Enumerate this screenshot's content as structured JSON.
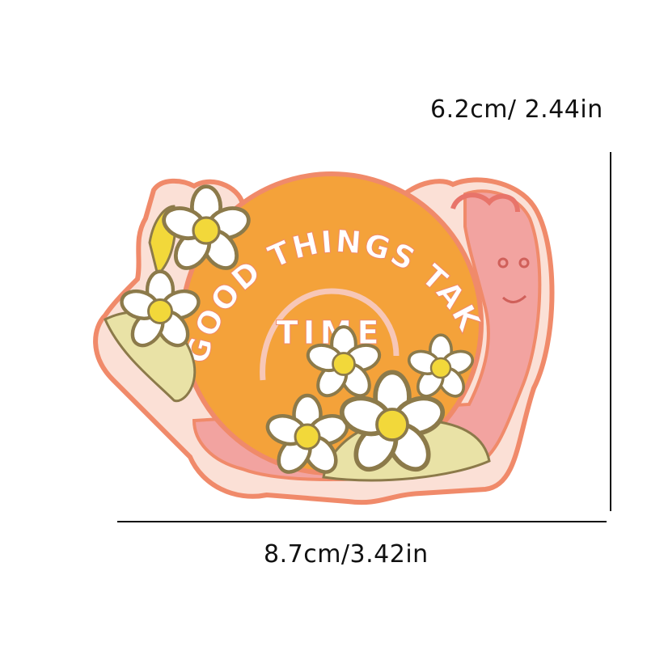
{
  "dimensions": {
    "height_label": "6.2cm/ 2.44in",
    "width_label": "8.7cm/3.42in"
  },
  "patch": {
    "text_top": "GOOD THINGS TAKE",
    "text_center": "TIME",
    "colors": {
      "outline": "#f08a6a",
      "shell": "#f4a23a",
      "shell_inner": "#f7b24c",
      "body": "#f2a3a0",
      "petal": "#ffffff",
      "flower_center": "#f2d83a",
      "leaf": "#e9e2a6",
      "stitch_dark": "#8c7a4a",
      "text": "#ffffff"
    }
  },
  "icons": [
    "snail-patch-icon",
    "daisy-icon"
  ]
}
